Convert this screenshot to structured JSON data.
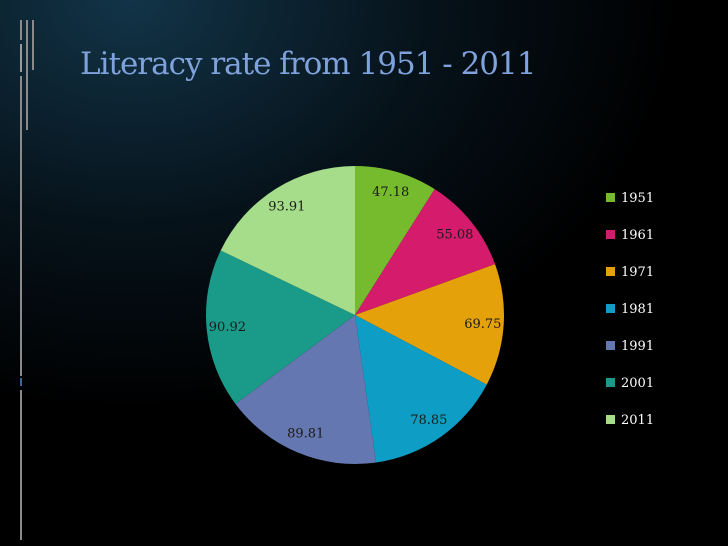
{
  "slide": {
    "title": "Literacy rate from 1951 - 2011"
  },
  "colors": {
    "background_top": "#0d2a3a",
    "background_bottom": "#000000",
    "title": "#7fa2dc"
  },
  "chart_data": {
    "type": "pie",
    "title": "",
    "categories": [
      "1951",
      "1961",
      "1971",
      "1981",
      "1991",
      "2001",
      "2011"
    ],
    "values": [
      47.18,
      55.08,
      69.75,
      78.85,
      89.81,
      90.92,
      93.91
    ],
    "labels": [
      "47.18",
      "55.08",
      "69.75",
      "78.85",
      "89.81",
      "90.92",
      "93.91"
    ],
    "colors": [
      "#76bb2e",
      "#d41b6c",
      "#e4a10a",
      "#0e9dc4",
      "#6577b0",
      "#1a9a88",
      "#a5dd8b"
    ],
    "legend": "right",
    "start_angle": "12 o'clock, clockwise"
  }
}
